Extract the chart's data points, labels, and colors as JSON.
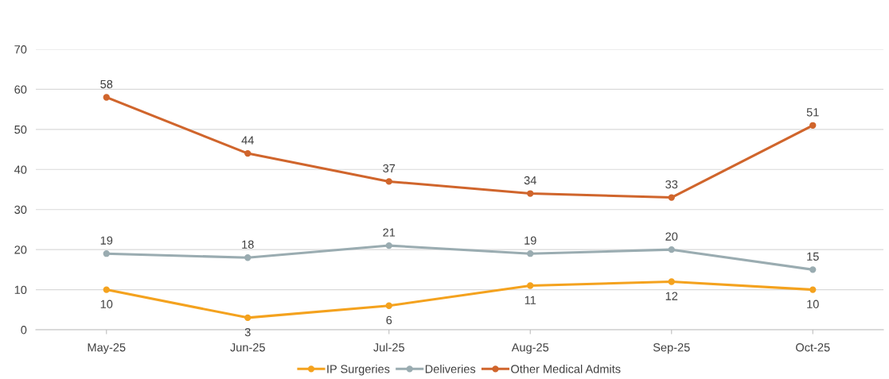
{
  "chart_data": {
    "type": "line",
    "categories": [
      "May-25",
      "Jun-25",
      "Jul-25",
      "Aug-25",
      "Sep-25",
      "Oct-25"
    ],
    "series": [
      {
        "name": "IP Surgeries",
        "color": "#f4a21e",
        "values": [
          10,
          3,
          6,
          11,
          12,
          10
        ]
      },
      {
        "name": "Deliveries",
        "color": "#9aacb1",
        "values": [
          19,
          18,
          21,
          19,
          20,
          15
        ]
      },
      {
        "name": "Other Medical Admits",
        "color": "#d0652c",
        "values": [
          58,
          44,
          37,
          34,
          33,
          51
        ]
      }
    ],
    "ylim": [
      0,
      70
    ],
    "yticks": [
      0,
      10,
      20,
      30,
      40,
      50,
      60,
      70
    ],
    "grid": "y",
    "legend": "bottom",
    "marker": "circle",
    "line_style": "solid",
    "data_labels": true
  }
}
